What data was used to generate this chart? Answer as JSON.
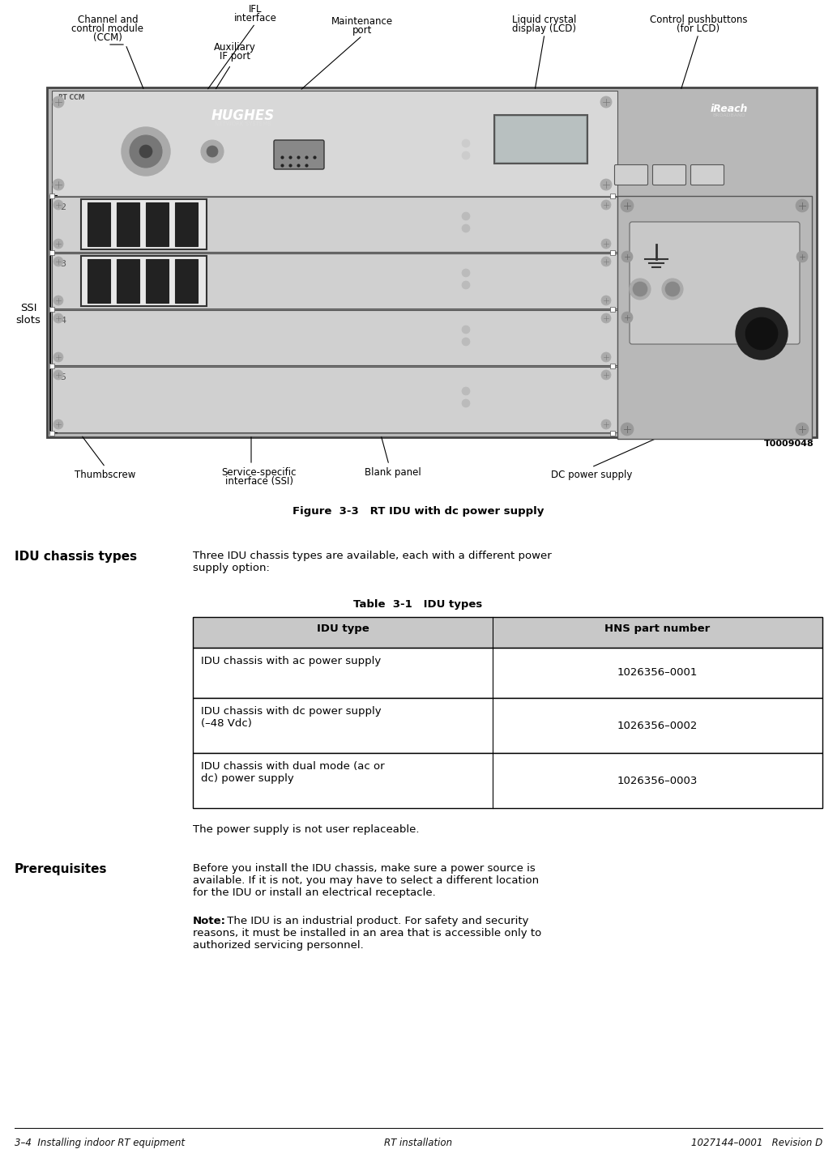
{
  "page_bg": "#ffffff",
  "t0009048": "T0009048",
  "figure_caption": "Figure  3-3   RT IDU with dc power supply",
  "section_heading": "IDU chassis types",
  "section_text1": "Three IDU chassis types are available, each with a different power",
  "section_text2": "supply option:",
  "table_title": "Table  3-1   IDU types",
  "table_col1_header": "IDU type",
  "table_col2_header": "HNS part number",
  "table_rows": [
    [
      "IDU chassis with ac power supply",
      "1026356–0001"
    ],
    [
      "IDU chassis with dc power supply\n(–48 Vdc)",
      "1026356–0002"
    ],
    [
      "IDU chassis with dual mode (ac or\ndc) power supply",
      "1026356–0003"
    ]
  ],
  "power_note": "The power supply is not user replaceable.",
  "prereq_heading": "Prerequisites",
  "prereq_text1": "Before you install the IDU chassis, make sure a power source is",
  "prereq_text2": "available. If it is not, you may have to select a different location",
  "prereq_text3": "for the IDU or install an electrical receptacle.",
  "note_bold": "Note:",
  "note_rest": " The IDU is an industrial product. For safety and security",
  "note_line2": "reasons, it must be installed in an area that is accessible only to",
  "note_line3": "authorized servicing personnel.",
  "footer_left": "3–4  Installing indoor RT equipment",
  "footer_center": "RT installation",
  "footer_right": "1027144–0001   Revision D",
  "fig_outer_color": "#b8b8b8",
  "fig_row_color": "#d0d0d0",
  "fig_dc_color": "#c0c0c0",
  "fig_inner_color": "#c8c8c8"
}
